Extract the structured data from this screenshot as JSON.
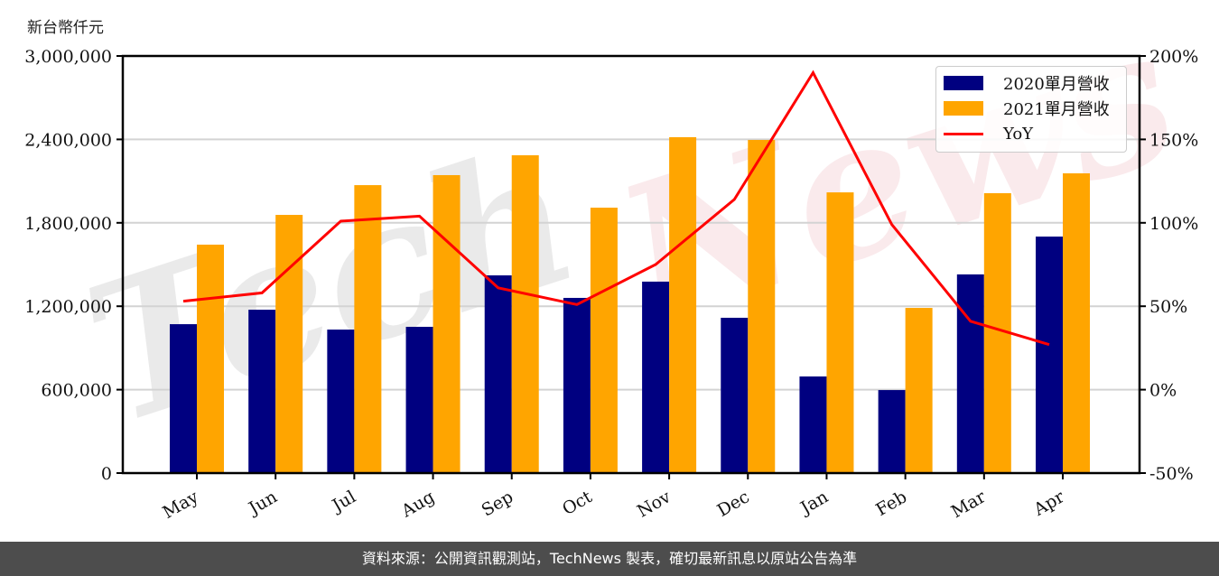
{
  "chart_data": {
    "type": "bar",
    "title": "",
    "ylabel": "新台幣仟元",
    "xlabel": "",
    "categories": [
      "May",
      "Jun",
      "Jul",
      "Aug",
      "Sep",
      "Oct",
      "Nov",
      "Dec",
      "Jan",
      "Feb",
      "Mar",
      "Apr"
    ],
    "series": [
      {
        "name": "2020單月營收",
        "type": "bar",
        "axis": "left",
        "color": "#000080",
        "values": [
          1071000,
          1175000,
          1032000,
          1052000,
          1422000,
          1260000,
          1377000,
          1117000,
          695000,
          597000,
          1429000,
          1701000
        ]
      },
      {
        "name": "2021單月營收",
        "type": "bar",
        "axis": "left",
        "color": "#FFA500",
        "values": [
          1643000,
          1857000,
          2071000,
          2143000,
          2286000,
          1909000,
          2416000,
          2396000,
          2019000,
          1188000,
          2013000,
          2156000
        ]
      },
      {
        "name": "YoY",
        "type": "line",
        "axis": "right",
        "color": "#FF0000",
        "unit": "%",
        "values": [
          53,
          58,
          101,
          104,
          61,
          51,
          75,
          114,
          190,
          99,
          41,
          27
        ]
      }
    ],
    "ylim": [
      0,
      3000000
    ],
    "yticks": [
      0,
      600000,
      1200000,
      1800000,
      2400000,
      3000000
    ],
    "ytick_labels": [
      "0",
      "600,000",
      "1,200,000",
      "1,800,000",
      "2,400,000",
      "3,000,000"
    ],
    "y2lim": [
      -50,
      200
    ],
    "y2ticks": [
      -50,
      0,
      50,
      100,
      150,
      200
    ],
    "y2tick_labels": [
      "-50%",
      "0%",
      "50%",
      "100%",
      "150%",
      "200%"
    ],
    "grid": "horizontal",
    "legend_position": "upper right",
    "xtick_rotation": 30,
    "watermark": "TechNews"
  },
  "unit_label": "新台幣仟元",
  "legend": {
    "items": [
      {
        "label": "2020單月營收",
        "color": "#000080",
        "kind": "bar"
      },
      {
        "label": "2021單月營收",
        "color": "#FFA500",
        "kind": "bar"
      },
      {
        "label": "YoY",
        "color": "#FF0000",
        "kind": "line"
      }
    ]
  },
  "footer": {
    "text": "資料來源：公開資訊觀測站，TechNews 製表，確切最新訊息以原站公告為準"
  }
}
